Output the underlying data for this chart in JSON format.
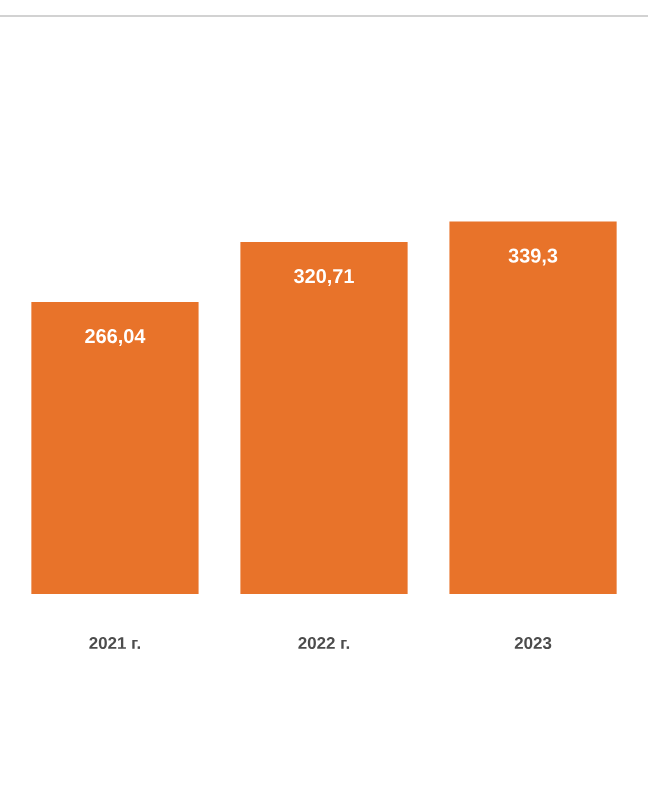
{
  "chart_data": {
    "type": "bar",
    "categories": [
      "2021 г.",
      "2022 г.",
      "2023"
    ],
    "values": [
      266.04,
      320.71,
      339.3
    ],
    "value_labels": [
      "266,04",
      "320,71",
      "339,3"
    ],
    "color": "#e8732a"
  }
}
